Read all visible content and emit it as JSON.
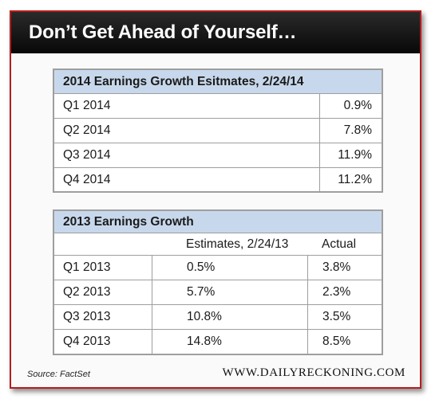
{
  "banner": {
    "title": "Don’t Get Ahead of Yourself…"
  },
  "table2014": {
    "title": "2014 Earnings Growth Esitmates, 2/24/14",
    "rows": [
      {
        "quarter": "Q1 2014",
        "value": "0.9%"
      },
      {
        "quarter": "Q2 2014",
        "value": "7.8%"
      },
      {
        "quarter": "Q3 2014",
        "value": "11.9%"
      },
      {
        "quarter": "Q4 2014",
        "value": "11.2%"
      }
    ]
  },
  "table2013": {
    "title": "2013 Earnings Growth",
    "col_estimates": "Estimates, 2/24/13",
    "col_actual": "Actual",
    "rows": [
      {
        "quarter": "Q1 2013",
        "estimate": "0.5%",
        "actual": "3.8%"
      },
      {
        "quarter": "Q2 2013",
        "estimate": "5.7%",
        "actual": "2.3%"
      },
      {
        "quarter": "Q3 2013",
        "estimate": "10.8%",
        "actual": "3.5%"
      },
      {
        "quarter": "Q4 2013",
        "estimate": "14.8%",
        "actual": "8.5%"
      }
    ]
  },
  "footer": {
    "source": "Source: FactSet",
    "site": "WWW.DAILYRECKONING.COM"
  }
}
